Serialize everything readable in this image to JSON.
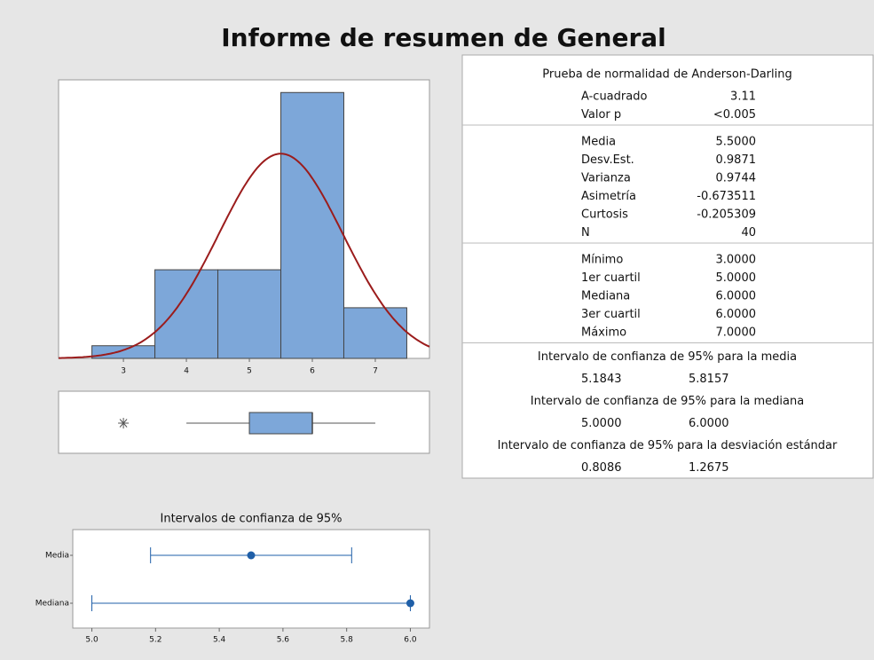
{
  "title": "Informe de resumen de General",
  "chart_data": [
    {
      "type": "histogram",
      "bins": [
        2.5,
        3.5,
        4.5,
        5.5,
        6.5,
        7.5
      ],
      "counts": [
        1,
        7,
        7,
        21,
        4
      ],
      "color": "#7da7d9",
      "curve_color": "#9b1c1c",
      "xlim": [
        1.97,
        7.86
      ],
      "xticks": [
        3,
        4,
        5,
        6,
        7
      ],
      "ylim": [
        0,
        22
      ]
    },
    {
      "type": "box",
      "outliers": [
        3
      ],
      "whisker_low": 4,
      "q1": 5,
      "median": 6,
      "q3": 6,
      "whisker_high": 7,
      "color": "#7da7d9"
    },
    {
      "type": "interval",
      "title": "Intervalos de confianza de 95%",
      "categories": [
        "Media",
        "Mediana"
      ],
      "series": [
        {
          "color": "#1f5fa8",
          "values": [
            5.5,
            6
          ],
          "lower": [
            5.1843,
            5.0
          ],
          "upper": [
            5.8157,
            6.0
          ]
        }
      ],
      "xlim": [
        4.94,
        6.06
      ],
      "xticks": [
        {
          "value": 5,
          "label": "5.0"
        },
        {
          "value": 5.2,
          "label": "5.2"
        },
        {
          "value": 5.4,
          "label": "5.4"
        },
        {
          "value": 5.6,
          "label": "5.6"
        },
        {
          "value": 5.8,
          "label": "5.8"
        },
        {
          "value": 6,
          "label": "6.0"
        }
      ]
    }
  ],
  "summary": {
    "sections": [
      {
        "title": "Prueba de normalidad de Anderson-Darling",
        "rows": [
          [
            "A-cuadrado",
            "3.11"
          ],
          [
            "Valor p",
            "<0.005"
          ]
        ]
      },
      {
        "rows": [
          [
            "Media",
            "5.5000"
          ],
          [
            "Desv.Est.",
            "0.9871"
          ],
          [
            "Varianza",
            "0.9744"
          ],
          [
            "Asimetría",
            "-0.673511"
          ],
          [
            "Curtosis",
            "-0.205309"
          ],
          [
            "N",
            "40"
          ]
        ]
      },
      {
        "rows": [
          [
            "Mínimo",
            "3.0000"
          ],
          [
            "1er cuartil",
            "5.0000"
          ],
          [
            "Mediana",
            "6.0000"
          ],
          [
            "3er cuartil",
            "6.0000"
          ],
          [
            "Máximo",
            "7.0000"
          ]
        ]
      }
    ],
    "intervals": [
      {
        "title": "Intervalo de confianza de 95% para la media",
        "values": [
          "5.1843",
          "5.8157"
        ]
      },
      {
        "title": "Intervalo de confianza de 95% para la mediana",
        "values": [
          "5.0000",
          "6.0000"
        ]
      },
      {
        "title": "Intervalo de confianza de 95% para la desviación estándar",
        "values": [
          "0.8086",
          "1.2675"
        ]
      }
    ]
  }
}
